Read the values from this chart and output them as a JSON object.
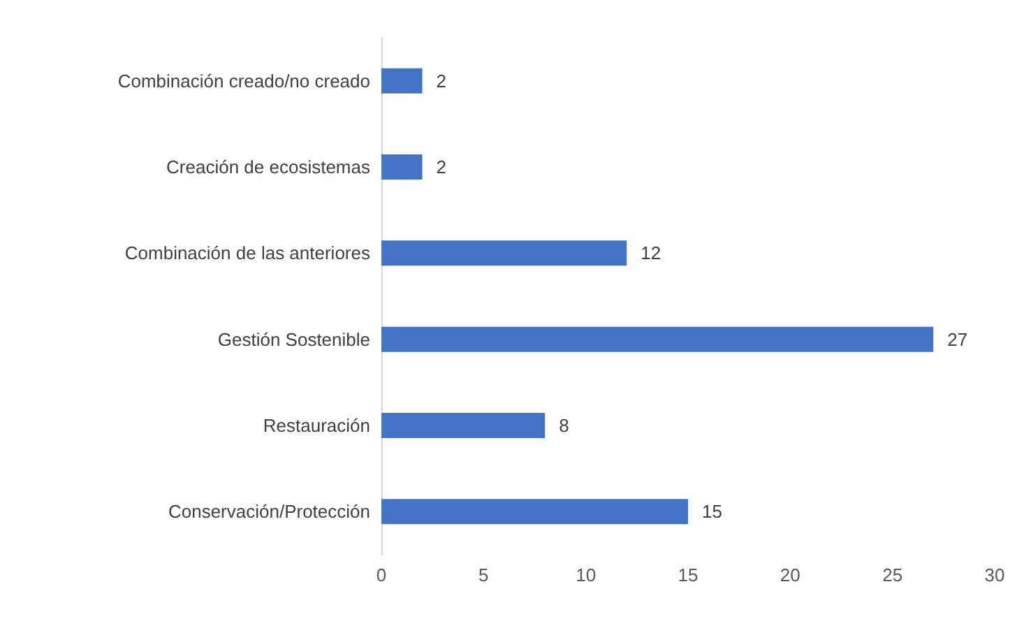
{
  "chart_data": {
    "type": "bar",
    "orientation": "horizontal",
    "categories": [
      "Combinación creado/no creado",
      "Creación de ecosistemas",
      "Combinación de las anteriores",
      "Gestión Sostenible",
      "Restauración",
      "Conservación/Protección"
    ],
    "values": [
      2,
      2,
      12,
      27,
      8,
      15
    ],
    "color": "#4472c4",
    "xlim": [
      0,
      30
    ],
    "xticks": [
      0,
      5,
      10,
      15,
      20,
      25,
      30
    ],
    "grid": false,
    "data_labels": true
  }
}
